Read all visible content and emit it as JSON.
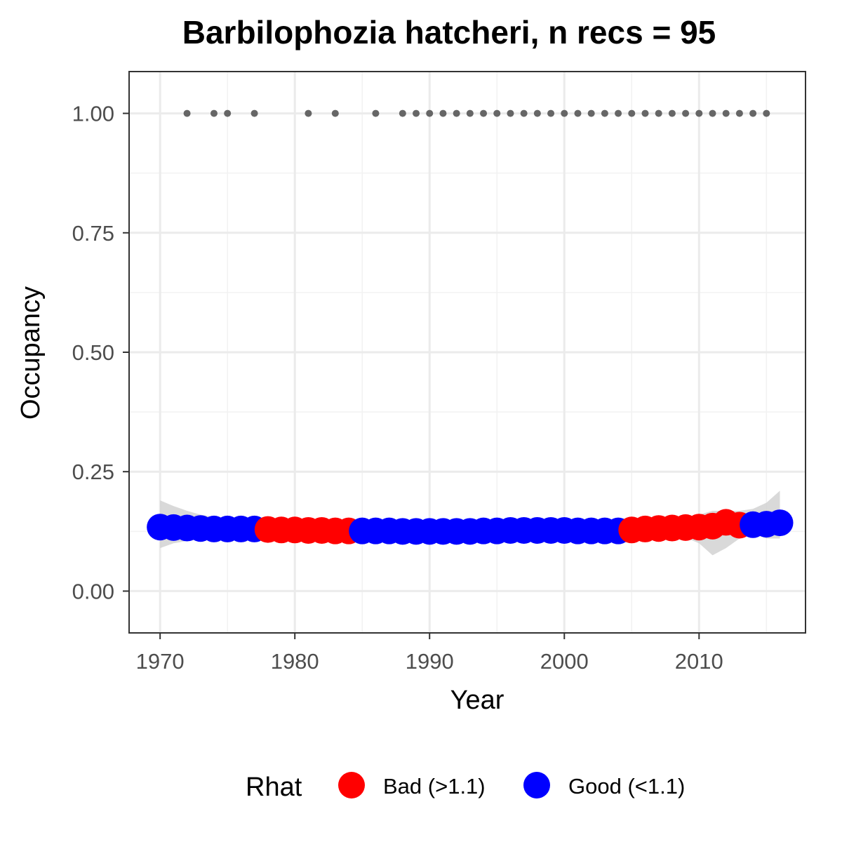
{
  "chart_data": {
    "type": "scatter",
    "title": "Barbilophozia hatcheri, n recs = 95",
    "xlabel": "Year",
    "ylabel": "Occupancy",
    "xlim": [
      1967.7,
      2017.9
    ],
    "ylim": [
      -0.0875,
      1.0875
    ],
    "x_ticks": [
      1970,
      1980,
      1990,
      2000,
      2010
    ],
    "x_tick_labels": [
      "1970",
      "1980",
      "1990",
      "2000",
      "2010"
    ],
    "y_ticks": [
      0,
      0.25,
      0.5,
      0.75,
      1
    ],
    "y_tick_labels": [
      "0.00",
      "0.25",
      "0.50",
      "0.75",
      "1.00"
    ],
    "grid": true,
    "legend": {
      "title": "Rhat",
      "position": "bottom",
      "entries": [
        {
          "label": "Bad (>1.1)",
          "color": "#ff0000"
        },
        {
          "label": "Good (<1.1)",
          "color": "#0000ff"
        }
      ]
    },
    "observed_points": {
      "color": "#666666",
      "y": 1,
      "x": [
        1972,
        1974,
        1975,
        1977,
        1981,
        1983,
        1986,
        1988,
        1989,
        1990,
        1991,
        1992,
        1993,
        1994,
        1995,
        1996,
        1997,
        1998,
        1999,
        2000,
        2001,
        2002,
        2003,
        2004,
        2005,
        2006,
        2007,
        2008,
        2009,
        2010,
        2011,
        2012,
        2013,
        2014,
        2015
      ]
    },
    "series": [
      {
        "x": [
          1970,
          1971,
          1972,
          1973,
          1974,
          1975,
          1976,
          1977,
          1978,
          1979,
          1980,
          1981,
          1982,
          1983,
          1984,
          1985,
          1986,
          1987,
          1988,
          1989,
          1990,
          1991,
          1992,
          1993,
          1994,
          1995,
          1996,
          1997,
          1998,
          1999,
          2000,
          2001,
          2002,
          2003,
          2004,
          2005,
          2006,
          2007,
          2008,
          2009,
          2010,
          2011,
          2012,
          2013,
          2014,
          2015,
          2016
        ],
        "values": [
          0.134,
          0.133,
          0.132,
          0.131,
          0.13,
          0.13,
          0.13,
          0.13,
          0.129,
          0.128,
          0.128,
          0.127,
          0.127,
          0.126,
          0.126,
          0.126,
          0.126,
          0.126,
          0.125,
          0.125,
          0.125,
          0.125,
          0.125,
          0.125,
          0.126,
          0.126,
          0.127,
          0.127,
          0.127,
          0.127,
          0.127,
          0.126,
          0.126,
          0.126,
          0.126,
          0.128,
          0.13,
          0.131,
          0.132,
          0.133,
          0.134,
          0.136,
          0.144,
          0.138,
          0.139,
          0.14,
          0.143
        ],
        "rhat": [
          "Good",
          "Good",
          "Good",
          "Good",
          "Good",
          "Good",
          "Good",
          "Good",
          "Bad",
          "Bad",
          "Bad",
          "Bad",
          "Bad",
          "Bad",
          "Bad",
          "Good",
          "Good",
          "Good",
          "Good",
          "Good",
          "Good",
          "Good",
          "Good",
          "Good",
          "Good",
          "Good",
          "Good",
          "Good",
          "Good",
          "Good",
          "Good",
          "Good",
          "Good",
          "Good",
          "Good",
          "Bad",
          "Bad",
          "Bad",
          "Bad",
          "Bad",
          "Bad",
          "Bad",
          "Bad",
          "Bad",
          "Good",
          "Good",
          "Good"
        ],
        "lower": [
          0.09,
          0.1,
          0.105,
          0.108,
          0.11,
          0.112,
          0.114,
          0.116,
          0.117,
          0.118,
          0.119,
          0.12,
          0.12,
          0.12,
          0.12,
          0.12,
          0.12,
          0.12,
          0.12,
          0.12,
          0.12,
          0.12,
          0.12,
          0.12,
          0.12,
          0.12,
          0.12,
          0.12,
          0.12,
          0.12,
          0.12,
          0.12,
          0.12,
          0.12,
          0.12,
          0.121,
          0.12,
          0.119,
          0.116,
          0.112,
          0.1,
          0.075,
          0.09,
          0.11,
          0.12,
          0.11,
          0.11
        ],
        "upper": [
          0.19,
          0.178,
          0.168,
          0.16,
          0.155,
          0.15,
          0.147,
          0.144,
          0.141,
          0.139,
          0.137,
          0.136,
          0.135,
          0.134,
          0.134,
          0.134,
          0.134,
          0.134,
          0.133,
          0.133,
          0.133,
          0.133,
          0.133,
          0.133,
          0.134,
          0.135,
          0.136,
          0.137,
          0.137,
          0.137,
          0.137,
          0.137,
          0.137,
          0.137,
          0.137,
          0.139,
          0.141,
          0.144,
          0.147,
          0.152,
          0.16,
          0.168,
          0.168,
          0.168,
          0.172,
          0.185,
          0.21
        ]
      }
    ]
  }
}
